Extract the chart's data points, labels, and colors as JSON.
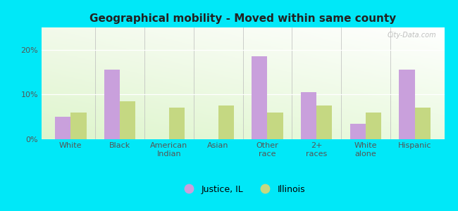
{
  "title": "Geographical mobility - Moved within same county",
  "categories": [
    "White",
    "Black",
    "American\nIndian",
    "Asian",
    "Other\nrace",
    "2+\nraces",
    "White\nalone",
    "Hispanic"
  ],
  "justice_il": [
    5.0,
    15.5,
    0.0,
    0.0,
    18.5,
    10.5,
    3.5,
    15.5
  ],
  "illinois": [
    6.0,
    8.5,
    7.0,
    7.5,
    6.0,
    7.5,
    6.0,
    7.0
  ],
  "bar_color_justice": "#c9a0dc",
  "bar_color_illinois": "#c5d882",
  "background_outer": "#00e8f8",
  "ylim": [
    0,
    25
  ],
  "yticks": [
    0,
    10,
    20
  ],
  "ytick_labels": [
    "0%",
    "10%",
    "20%"
  ],
  "legend_justice": "Justice, IL",
  "legend_illinois": "Illinois",
  "title_fontsize": 11,
  "tick_fontsize": 8,
  "legend_fontsize": 9,
  "bar_width": 0.32,
  "watermark": "City-Data.com",
  "watermark_color": "#aaaaaa"
}
